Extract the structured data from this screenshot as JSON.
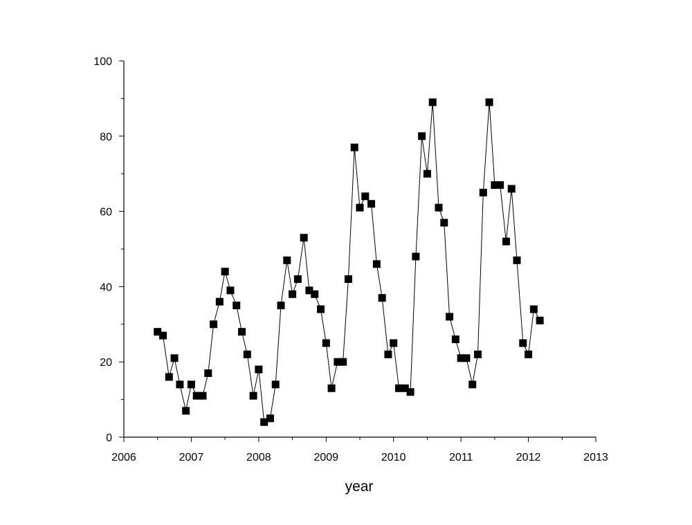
{
  "chart_data": {
    "type": "scatter",
    "xlabel": "year",
    "ylabel": "",
    "xlim": [
      2006,
      2013
    ],
    "ylim": [
      0,
      100
    ],
    "xticks": [
      "2006",
      "2007",
      "2008",
      "2009",
      "2010",
      "2011",
      "2012",
      "2013"
    ],
    "yticks": [
      "0",
      "20",
      "40",
      "60",
      "80",
      "100"
    ],
    "grid": false,
    "series": [
      {
        "marker": "square",
        "line": true,
        "color": "#000000",
        "x": [
          2006.5,
          2006.58,
          2006.67,
          2006.75,
          2006.83,
          2006.92,
          2007.0,
          2007.08,
          2007.17,
          2007.25,
          2007.33,
          2007.42,
          2007.5,
          2007.58,
          2007.67,
          2007.75,
          2007.83,
          2007.92,
          2008.0,
          2008.08,
          2008.17,
          2008.25,
          2008.33,
          2008.42,
          2008.5,
          2008.58,
          2008.67,
          2008.75,
          2008.83,
          2008.92,
          2009.0,
          2009.08,
          2009.17,
          2009.25,
          2009.33,
          2009.42,
          2009.5,
          2009.58,
          2009.67,
          2009.75,
          2009.83,
          2009.92,
          2010.0,
          2010.08,
          2010.17,
          2010.25,
          2010.33,
          2010.42,
          2010.5,
          2010.58,
          2010.67,
          2010.75,
          2010.83,
          2010.92,
          2011.0,
          2011.08,
          2011.17,
          2011.25,
          2011.33,
          2011.42,
          2011.5,
          2011.58,
          2011.67,
          2011.75,
          2011.83,
          2011.92,
          2012.0,
          2012.08,
          2012.17
        ],
        "y": [
          28,
          27,
          16,
          21,
          14,
          7,
          14,
          11,
          11,
          17,
          30,
          36,
          44,
          39,
          35,
          28,
          22,
          11,
          18,
          4,
          5,
          14,
          35,
          47,
          38,
          42,
          53,
          39,
          38,
          34,
          25,
          13,
          20,
          20,
          42,
          77,
          61,
          64,
          62,
          46,
          37,
          22,
          25,
          13,
          13,
          12,
          48,
          80,
          70,
          89,
          61,
          57,
          32,
          26,
          21,
          21,
          14,
          22,
          65,
          89,
          67,
          67,
          52,
          66,
          47,
          25,
          22,
          34,
          31
        ]
      }
    ]
  }
}
